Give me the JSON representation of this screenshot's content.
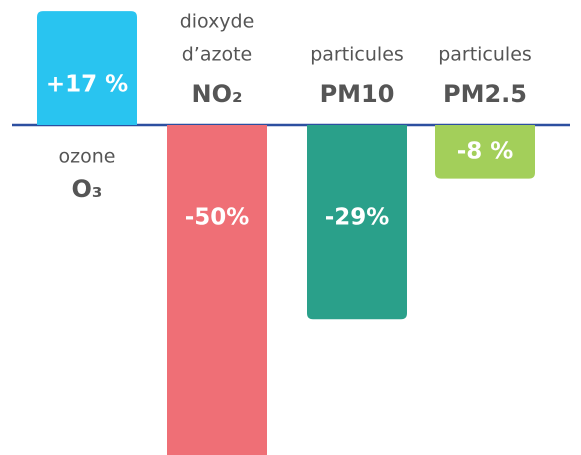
{
  "chart_data": {
    "type": "bar",
    "categories": [
      [
        "ozone",
        "O₃"
      ],
      [
        "dioxyde",
        "d’azote",
        "NO₂"
      ],
      [
        "particules",
        "PM10"
      ],
      [
        "particules",
        "PM2.5"
      ]
    ],
    "values": [
      17,
      -50,
      -29,
      -8
    ],
    "value_labels": [
      "+17 %",
      "-50%",
      "-29%",
      "-8 %"
    ],
    "colors": [
      "#29c4f0",
      "#ef6f76",
      "#2aa08a",
      "#a3cf5a"
    ]
  }
}
